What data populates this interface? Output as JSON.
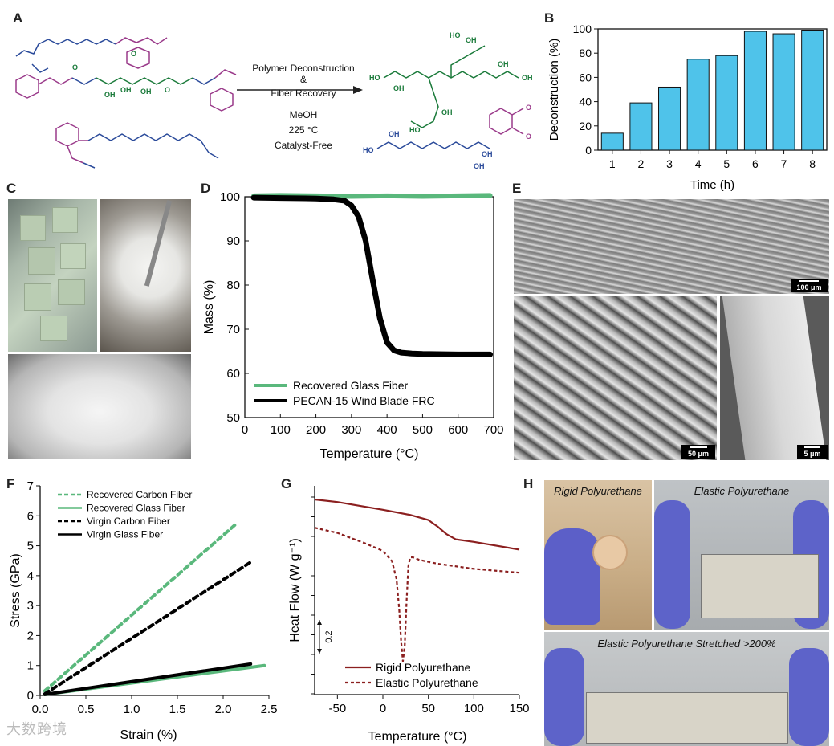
{
  "panels": {
    "A": "A",
    "B": "B",
    "C": "C",
    "D": "D",
    "E": "E",
    "F": "F",
    "G": "G",
    "H": "H"
  },
  "scheme": {
    "lines": [
      "Polymer Deconstruction",
      "&",
      "Fiber Recovery",
      "MeOH",
      "225 °C",
      "Catalyst-Free"
    ]
  },
  "sem": {
    "scale_top": "100 μm",
    "scale_left": "50 μm",
    "scale_right": "5 μm"
  },
  "photos_h": {
    "rigid": "Rigid Polyurethane",
    "elastic": "Elastic Polyurethane",
    "stretched": "Elastic Polyurethane Stretched >200%"
  },
  "watermark": "大数跨境",
  "chart_data": [
    {
      "id": "B",
      "type": "bar",
      "xlabel": "Time (h)",
      "ylabel": "Deconstruction (%)",
      "categories": [
        "1",
        "2",
        "3",
        "4",
        "5",
        "6",
        "7",
        "8"
      ],
      "values": [
        14,
        39,
        52,
        75,
        78,
        98,
        96,
        99
      ],
      "ylim": [
        0,
        100
      ],
      "yticks": [
        "0",
        "20",
        "40",
        "60",
        "80",
        "100"
      ],
      "color": "#4fc3ea"
    },
    {
      "id": "D",
      "type": "line",
      "xlabel": "Temperature (°C)",
      "ylabel": "Mass (%)",
      "xlim": [
        0,
        700
      ],
      "ylim": [
        50,
        100
      ],
      "xticks": [
        "0",
        "100",
        "200",
        "300",
        "400",
        "500",
        "600",
        "700"
      ],
      "yticks": [
        "50",
        "60",
        "70",
        "80",
        "90",
        "100"
      ],
      "legend_position": "bottom-left",
      "series": [
        {
          "name": "Recovered Glass Fiber",
          "color": "#5ab87c",
          "x": [
            25,
            100,
            200,
            300,
            400,
            500,
            600,
            690
          ],
          "y": [
            100.2,
            100.3,
            100.2,
            100.1,
            100.2,
            100.1,
            100.2,
            100.3
          ]
        },
        {
          "name": "PECAN-15 Wind Blade FRC",
          "color": "#000000",
          "x": [
            25,
            100,
            200,
            250,
            280,
            300,
            320,
            340,
            360,
            380,
            400,
            420,
            440,
            470,
            500,
            600,
            690
          ],
          "y": [
            99.8,
            99.7,
            99.6,
            99.4,
            99.1,
            98.0,
            95.5,
            90.0,
            81.0,
            72.5,
            67.0,
            65.2,
            64.7,
            64.5,
            64.4,
            64.3,
            64.3
          ]
        }
      ]
    },
    {
      "id": "F",
      "type": "line",
      "xlabel": "Strain (%)",
      "ylabel": "Stress (GPa)",
      "xlim": [
        0,
        2.5
      ],
      "ylim": [
        0,
        7
      ],
      "xticks": [
        "0.0",
        "0.5",
        "1.0",
        "1.5",
        "2.0",
        "2.5"
      ],
      "yticks": [
        "0",
        "1",
        "2",
        "3",
        "4",
        "5",
        "6",
        "7"
      ],
      "legend_position": "top-left",
      "series": [
        {
          "name": "Recovered Carbon Fiber",
          "color": "#5ab87c",
          "dash": true,
          "x": [
            0.05,
            2.15
          ],
          "y": [
            0.15,
            5.75
          ]
        },
        {
          "name": "Recovered Glass Fiber",
          "color": "#5ab87c",
          "dash": false,
          "x": [
            0.05,
            2.45
          ],
          "y": [
            0.03,
            1.0
          ]
        },
        {
          "name": "Virgin Carbon Fiber",
          "color": "#000000",
          "dash": true,
          "x": [
            0.05,
            2.3
          ],
          "y": [
            0.05,
            4.45
          ]
        },
        {
          "name": "Virgin Glass Fiber",
          "color": "#000000",
          "dash": false,
          "x": [
            0.05,
            2.3
          ],
          "y": [
            0.03,
            1.05
          ]
        }
      ]
    },
    {
      "id": "G",
      "type": "line",
      "xlabel": "Temperature (°C)",
      "ylabel": "Heat Flow (W g⁻¹)",
      "xlim": [
        -75,
        150
      ],
      "xticks": [
        "-50",
        "0",
        "50",
        "100",
        "150"
      ],
      "scale_label": "0.2",
      "legend_position": "bottom-right",
      "series": [
        {
          "name": "Rigid Polyurethane",
          "color": "#8b1f1f",
          "dash": false,
          "x": [
            -75,
            -50,
            0,
            30,
            50,
            60,
            70,
            80,
            100,
            150
          ],
          "y": [
            0.0,
            -0.02,
            -0.08,
            -0.12,
            -0.16,
            -0.21,
            -0.27,
            -0.31,
            -0.33,
            -0.39
          ]
        },
        {
          "name": "Elastic Polyurethane",
          "color": "#8b1f1f",
          "dash": true,
          "x": [
            -75,
            -50,
            -20,
            0,
            10,
            15,
            18,
            20,
            22,
            24,
            26,
            28,
            30,
            33,
            40,
            60,
            100,
            150
          ],
          "y": [
            -0.22,
            -0.26,
            -0.34,
            -0.4,
            -0.48,
            -0.62,
            -0.86,
            -1.1,
            -1.26,
            -1.14,
            -0.8,
            -0.52,
            -0.45,
            -0.45,
            -0.47,
            -0.5,
            -0.54,
            -0.57
          ]
        }
      ]
    }
  ]
}
